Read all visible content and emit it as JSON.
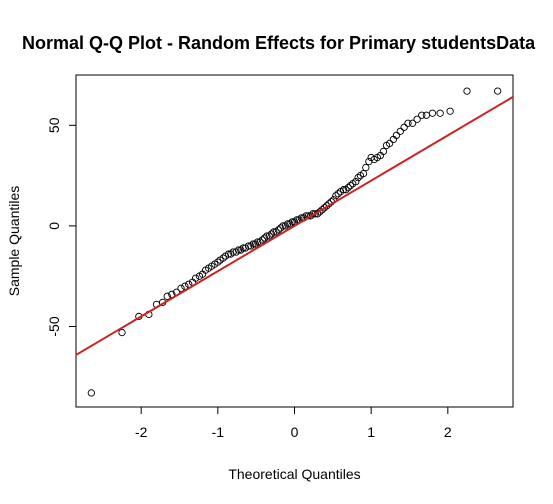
{
  "chart_data": {
    "type": "scatter",
    "title": "Normal Q-Q Plot - Random Effects for Primary studentsData",
    "xlabel": "Theoretical Quantiles",
    "ylabel": "Sample Quantiles",
    "xlim": [
      -2.85,
      2.85
    ],
    "ylim": [
      -90,
      75
    ],
    "x_ticks": [
      -2,
      -1,
      0,
      1,
      2
    ],
    "y_ticks": [
      -50,
      0,
      50
    ],
    "grid": false,
    "legend": "none",
    "point_color": "#000000",
    "line_color": "#cc2222",
    "reference_line": {
      "intercept": 0.0,
      "slope": 22.5
    },
    "x": [
      -2.65,
      -2.25,
      -2.03,
      -1.9,
      -1.8,
      -1.72,
      -1.66,
      -1.6,
      -1.54,
      -1.48,
      -1.43,
      -1.38,
      -1.33,
      -1.29,
      -1.24,
      -1.2,
      -1.16,
      -1.12,
      -1.08,
      -1.04,
      -1.0,
      -0.97,
      -0.93,
      -0.9,
      -0.86,
      -0.83,
      -0.8,
      -0.76,
      -0.73,
      -0.7,
      -0.67,
      -0.64,
      -0.6,
      -0.57,
      -0.54,
      -0.51,
      -0.48,
      -0.45,
      -0.42,
      -0.39,
      -0.36,
      -0.33,
      -0.3,
      -0.27,
      -0.24,
      -0.21,
      -0.18,
      -0.15,
      -0.12,
      -0.09,
      -0.06,
      -0.03,
      0.0,
      0.03,
      0.06,
      0.09,
      0.12,
      0.15,
      0.18,
      0.21,
      0.24,
      0.27,
      0.3,
      0.33,
      0.36,
      0.39,
      0.42,
      0.45,
      0.48,
      0.51,
      0.54,
      0.57,
      0.6,
      0.64,
      0.67,
      0.7,
      0.73,
      0.76,
      0.8,
      0.83,
      0.86,
      0.9,
      0.93,
      0.97,
      1.0,
      1.04,
      1.08,
      1.12,
      1.16,
      1.2,
      1.24,
      1.29,
      1.33,
      1.38,
      1.43,
      1.48,
      1.54,
      1.6,
      1.66,
      1.72,
      1.8,
      1.9,
      2.03,
      2.25,
      2.65
    ],
    "y": [
      -83,
      -53,
      -45,
      -44,
      -39,
      -38,
      -35,
      -34,
      -33,
      -31,
      -30,
      -29,
      -28,
      -26,
      -25,
      -24,
      -22,
      -21,
      -20,
      -19,
      -18,
      -17,
      -16,
      -15,
      -14,
      -14,
      -13,
      -13,
      -12,
      -12,
      -11,
      -11,
      -10,
      -10,
      -9,
      -9,
      -8,
      -8,
      -7,
      -6,
      -5,
      -5,
      -4,
      -3,
      -3,
      -2,
      -1,
      0,
      0,
      1,
      1,
      2,
      2,
      3,
      3,
      4,
      4,
      5,
      5,
      5,
      6,
      6,
      6,
      7,
      8,
      9,
      10,
      11,
      12,
      13,
      15,
      16,
      17,
      18,
      18,
      19,
      20,
      21,
      22,
      24,
      25,
      26,
      29,
      32,
      34,
      33,
      34,
      35,
      37,
      40,
      41,
      43,
      45,
      47,
      49,
      51,
      51,
      53,
      55,
      55,
      56,
      56,
      57,
      67,
      67
    ]
  }
}
